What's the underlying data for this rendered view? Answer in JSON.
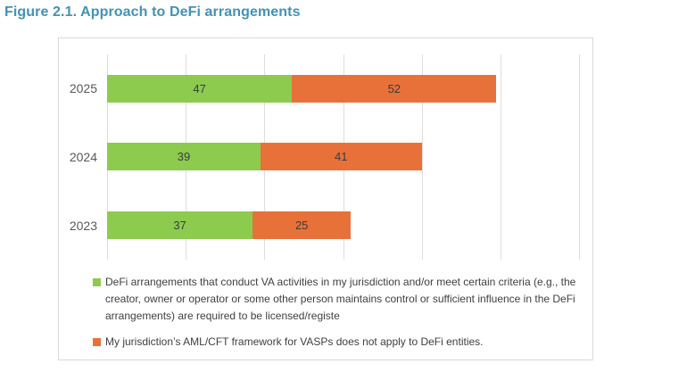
{
  "title": "Figure 2.1. Approach to DeFi arrangements",
  "title_color": "#4293B5",
  "chart_data": {
    "type": "bar",
    "orientation": "horizontal",
    "stacked": true,
    "title": "Figure 2.1. Approach to DeFi arrangements",
    "categories": [
      "2025",
      "2024",
      "2023"
    ],
    "series": [
      {
        "name": "DeFi arrangements that conduct VA activities in my jurisdiction and/or meet certain criteria (e.g., the creator, owner or operator or some other person maintains control or sufficient influence in the DeFi arrangements) are required to be licensed/registe",
        "color": "#8CCB4E",
        "values": [
          47,
          39,
          37
        ]
      },
      {
        "name": "My jurisdiction’s AML/CFT framework for VASPs does not apply to DeFi entities.",
        "color": "#E8713A",
        "values": [
          52,
          41,
          25
        ]
      }
    ],
    "xlabel": "",
    "ylabel": "",
    "xlim": [
      0,
      120
    ],
    "gridline_step": 20,
    "grid": true,
    "data_labels": true,
    "legend_position": "bottom"
  }
}
